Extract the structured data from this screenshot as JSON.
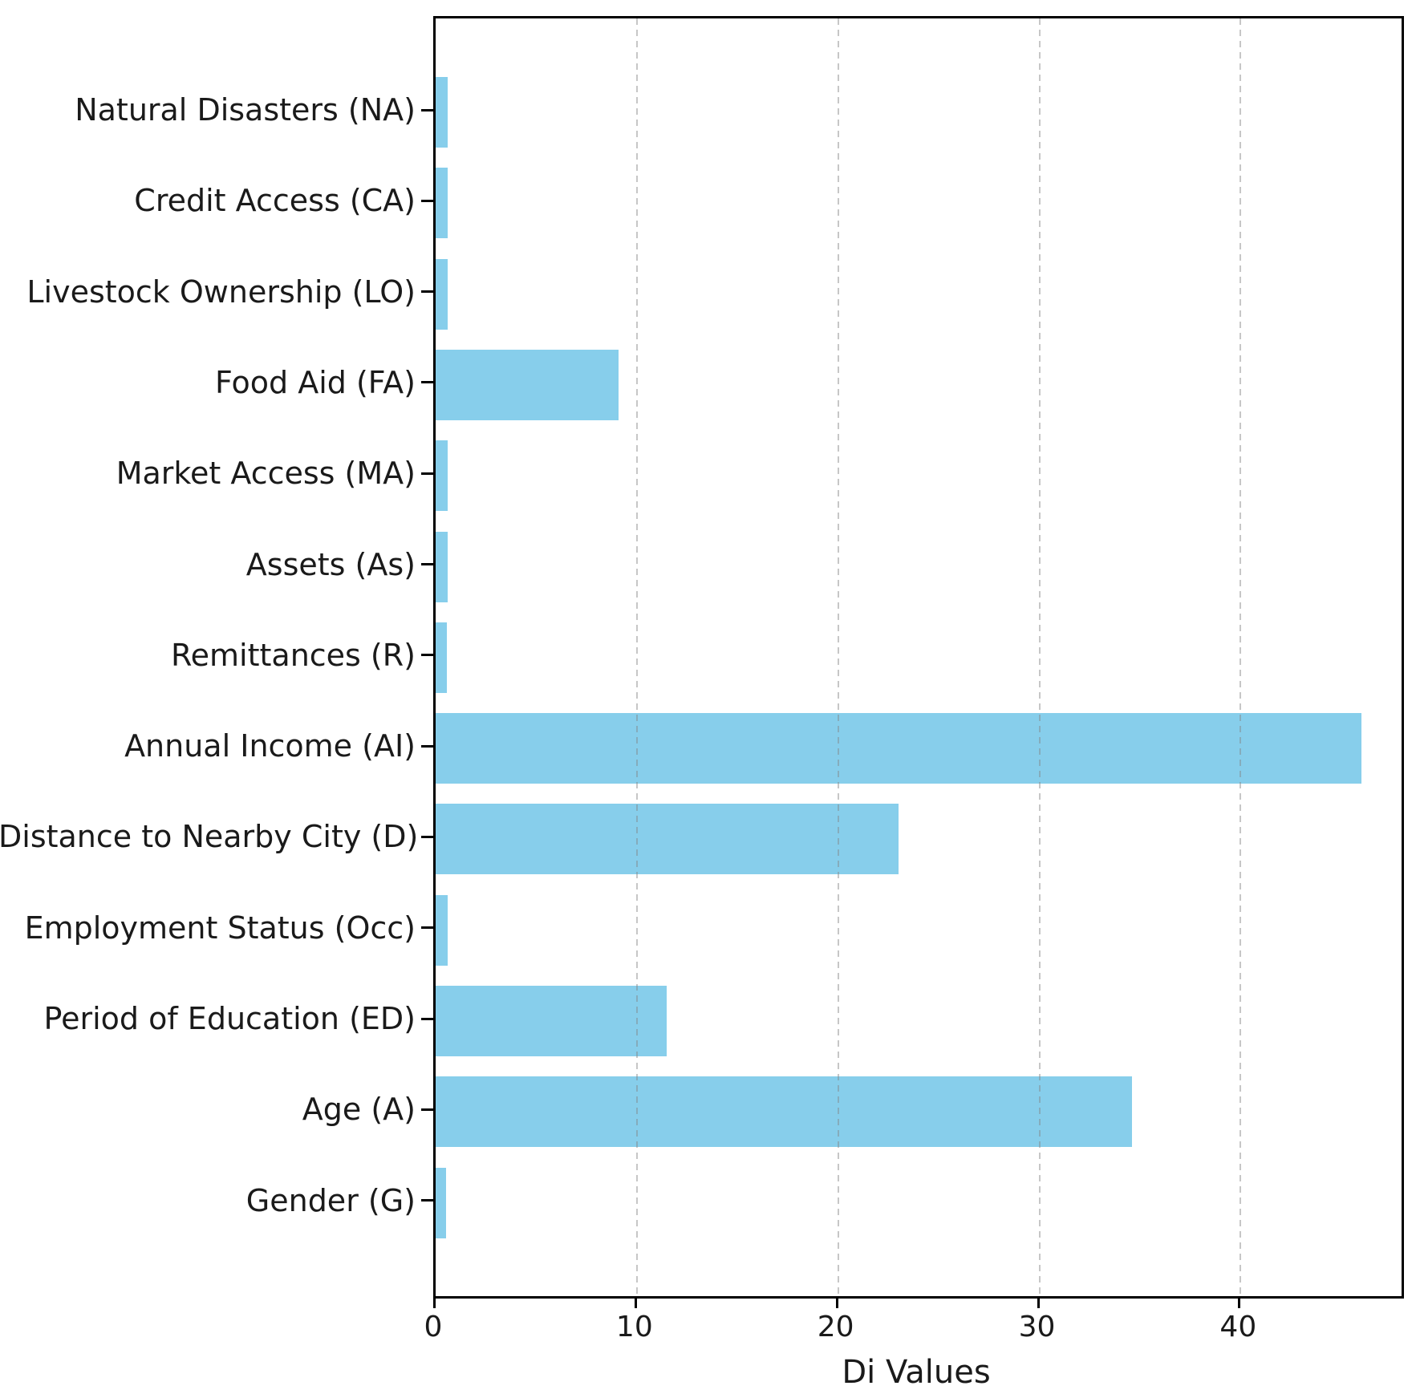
{
  "chart_data": {
    "type": "bar",
    "orientation": "horizontal",
    "title": "",
    "xlabel": "Di Values",
    "ylabel": "",
    "categories": [
      "Natural Disasters (NA)",
      "Credit Access (CA)",
      "Livestock Ownership (LO)",
      "Food Aid (FA)",
      "Market Access (MA)",
      "Assets (As)",
      "Remittances (R)",
      "Annual Income (AI)",
      "Distance to Nearby City (D)",
      "Employment Status (Occ)",
      "Period of Education (ED)",
      "Age (A)",
      "Gender (G)"
    ],
    "values": [
      0.6,
      0.6,
      0.6,
      9.1,
      0.6,
      0.6,
      0.55,
      46.0,
      23.0,
      0.6,
      11.5,
      34.6,
      0.5
    ],
    "xlim": [
      0,
      48
    ],
    "xticks": [
      0,
      10,
      20,
      30,
      40
    ],
    "bar_color": "#87CEEB",
    "grid": "vertical-dashed",
    "legend": "none"
  }
}
